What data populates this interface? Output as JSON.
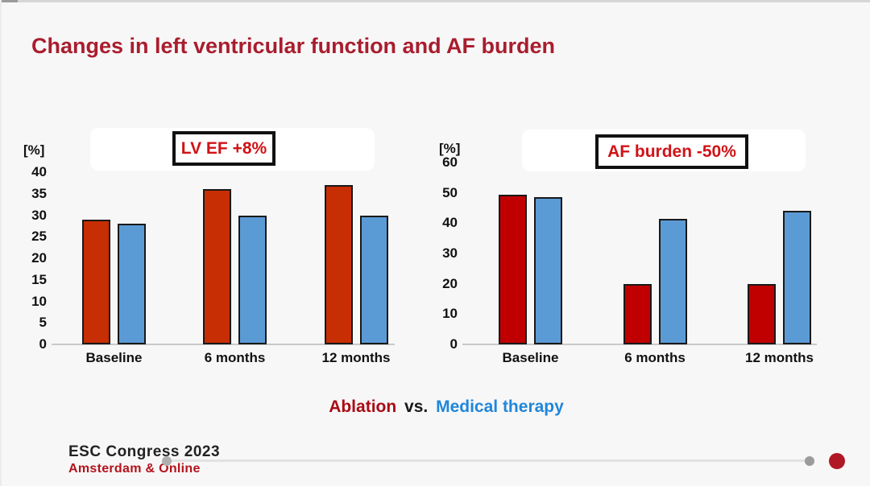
{
  "slide": {
    "title": "Changes in left ventricular function and AF burden",
    "legend": {
      "ablation": "Ablation",
      "vs": "vs.",
      "medical": "Medical therapy"
    },
    "footer": {
      "congress": "ESC Congress 2023",
      "location": "Amsterdam & Online"
    }
  },
  "colors": {
    "slide_background": "#F7F7F7",
    "title_red": "#A91D2E",
    "chart_label_red": "#D01317",
    "ablation_left": "#C72E04",
    "ablation_right": "#C00000",
    "medical_blue": "#5B9BD5",
    "bar_outline": "#191919",
    "legend_ablation_red": "#AA0A14",
    "legend_medical_blue": "#1F87DB",
    "footer_red": "#B5121B",
    "progress_dot_red": "#B01826"
  },
  "chart_data": [
    {
      "type": "bar",
      "title": "LV EF +8%",
      "unit_label": "[%]",
      "categories": [
        "Baseline",
        "6 months",
        "12 months"
      ],
      "series": [
        {
          "name": "Ablation",
          "color": "#C72E04",
          "values": [
            29,
            36,
            37
          ]
        },
        {
          "name": "Medical therapy",
          "color": "#5B9BD5",
          "values": [
            28,
            30,
            30
          ]
        }
      ],
      "ylim": [
        0,
        40
      ],
      "yticks": [
        0,
        5,
        10,
        15,
        20,
        25,
        30,
        35,
        40
      ],
      "grid": false,
      "legend_position": "none"
    },
    {
      "type": "bar",
      "title": "AF burden -50%",
      "unit_label": "[%]",
      "categories": [
        "Baseline",
        "6 months",
        "12 months"
      ],
      "series": [
        {
          "name": "Ablation",
          "color": "#C00000",
          "values": [
            49.5,
            20,
            20
          ]
        },
        {
          "name": "Medical therapy",
          "color": "#5B9BD5",
          "values": [
            48.5,
            41.5,
            44
          ]
        }
      ],
      "ylim": [
        0,
        60
      ],
      "yticks": [
        0,
        10,
        20,
        30,
        40,
        50,
        60
      ],
      "grid": false,
      "legend_position": "none"
    }
  ]
}
